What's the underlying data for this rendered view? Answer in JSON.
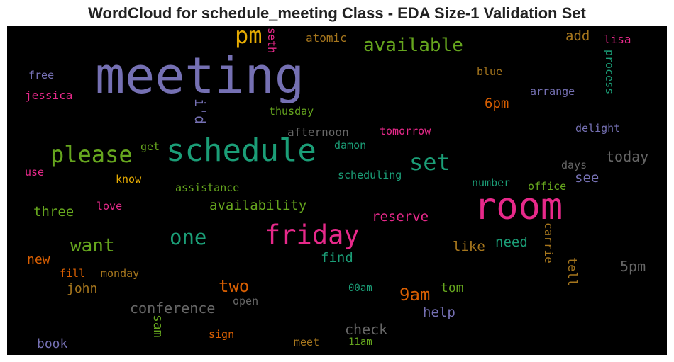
{
  "title": "WordCloud for schedule_meeting Class - EDA Size-1 Validation Set",
  "colors": {
    "background": "#000000",
    "purple": "#7570b3",
    "teal": "#1b9e77",
    "pink": "#e7298a",
    "green": "#66a61e",
    "orange": "#d95f02",
    "gold": "#e6ab02",
    "brown": "#a6761d",
    "gray": "#666666"
  },
  "words": [
    {
      "text": "meeting",
      "color": "#7570b3"
    },
    {
      "text": "room",
      "color": "#e7298a"
    },
    {
      "text": "schedule",
      "color": "#1b9e77"
    },
    {
      "text": "friday",
      "color": "#e7298a"
    },
    {
      "text": "please",
      "color": "#66a61e"
    },
    {
      "text": "pm",
      "color": "#e6ab02"
    },
    {
      "text": "available",
      "color": "#66a61e"
    },
    {
      "text": "set",
      "color": "#1b9e77"
    },
    {
      "text": "one",
      "color": "#1b9e77"
    },
    {
      "text": "want",
      "color": "#66a61e"
    },
    {
      "text": "two",
      "color": "#d95f02"
    },
    {
      "text": "9am",
      "color": "#d95f02"
    },
    {
      "text": "conference",
      "color": "#666666"
    },
    {
      "text": "check",
      "color": "#666666"
    },
    {
      "text": "availability",
      "color": "#66a61e"
    },
    {
      "text": "reserve",
      "color": "#e7298a"
    },
    {
      "text": "today",
      "color": "#666666"
    },
    {
      "text": "5pm",
      "color": "#666666"
    },
    {
      "text": "i'd",
      "color": "#7570b3"
    },
    {
      "text": "6pm",
      "color": "#d95f02"
    },
    {
      "text": "add",
      "color": "#a6761d"
    },
    {
      "text": "three",
      "color": "#66a61e"
    },
    {
      "text": "find",
      "color": "#1b9e77"
    },
    {
      "text": "like",
      "color": "#a6761d"
    },
    {
      "text": "need",
      "color": "#1b9e77"
    },
    {
      "text": "see",
      "color": "#7570b3"
    },
    {
      "text": "john",
      "color": "#a6761d"
    },
    {
      "text": "tom",
      "color": "#66a61e"
    },
    {
      "text": "help",
      "color": "#7570b3"
    },
    {
      "text": "book",
      "color": "#7570b3"
    },
    {
      "text": "new",
      "color": "#d95f02"
    },
    {
      "text": "sam",
      "color": "#66a61e"
    },
    {
      "text": "tell",
      "color": "#a6761d"
    },
    {
      "text": "carrie",
      "color": "#a6761d"
    },
    {
      "text": "process",
      "color": "#1b9e77"
    },
    {
      "text": "lisa",
      "color": "#e7298a"
    },
    {
      "text": "atomic",
      "color": "#a6761d"
    },
    {
      "text": "seth",
      "color": "#e7298a"
    },
    {
      "text": "free",
      "color": "#7570b3"
    },
    {
      "text": "jessica",
      "color": "#e7298a"
    },
    {
      "text": "blue",
      "color": "#a6761d"
    },
    {
      "text": "arrange",
      "color": "#7570b3"
    },
    {
      "text": "thusday",
      "color": "#66a61e"
    },
    {
      "text": "afternoon",
      "color": "#666666"
    },
    {
      "text": "tomorrow",
      "color": "#e7298a"
    },
    {
      "text": "delight",
      "color": "#7570b3"
    },
    {
      "text": "get",
      "color": "#66a61e"
    },
    {
      "text": "damon",
      "color": "#1b9e77"
    },
    {
      "text": "use",
      "color": "#e7298a"
    },
    {
      "text": "know",
      "color": "#e6ab02"
    },
    {
      "text": "scheduling",
      "color": "#1b9e77"
    },
    {
      "text": "days",
      "color": "#666666"
    },
    {
      "text": "assistance",
      "color": "#66a61e"
    },
    {
      "text": "number",
      "color": "#1b9e77"
    },
    {
      "text": "office",
      "color": "#66a61e"
    },
    {
      "text": "love",
      "color": "#e7298a"
    },
    {
      "text": "fill",
      "color": "#d95f02"
    },
    {
      "text": "monday",
      "color": "#a6761d"
    },
    {
      "text": "00am",
      "color": "#1b9e77"
    },
    {
      "text": "open",
      "color": "#666666"
    },
    {
      "text": "sign",
      "color": "#d95f02"
    },
    {
      "text": "meet",
      "color": "#a6761d"
    },
    {
      "text": "11am",
      "color": "#66a61e"
    }
  ]
}
